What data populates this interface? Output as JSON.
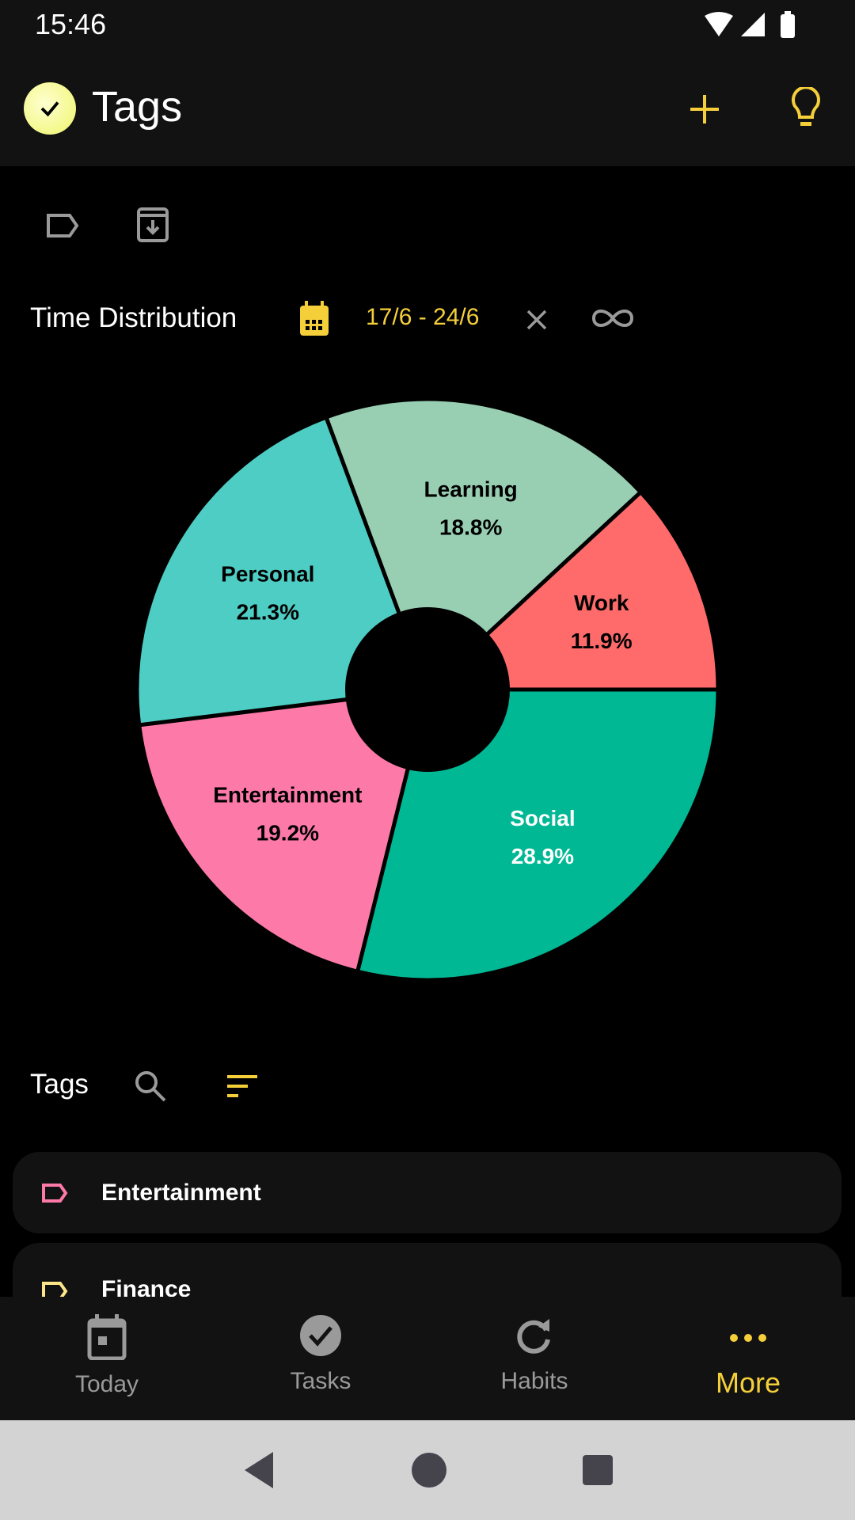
{
  "status_bar": {
    "time": "15:46"
  },
  "app_bar": {
    "title": "Tags",
    "add_icon": "plus-icon",
    "idea_icon": "lightbulb-icon"
  },
  "toolbar": {
    "icons": [
      "tag-outline-icon",
      "archive-icon"
    ]
  },
  "time_distribution": {
    "title": "Time Distribution",
    "date_range": "17/6 - 24/6"
  },
  "chart_data": {
    "type": "pie",
    "donut": true,
    "start": "3 o'clock, clockwise",
    "categories": [
      "Social",
      "Entertainment",
      "Personal",
      "Learning",
      "Work"
    ],
    "values": [
      28.9,
      19.2,
      21.3,
      18.8,
      11.9
    ],
    "labels": [
      "28.9%",
      "19.2%",
      "21.3%",
      "18.8%",
      "11.9%"
    ],
    "colors": [
      "#00b894",
      "#fd79a8",
      "#4ecdc4",
      "#98cfb3",
      "#ff6b6b"
    ],
    "label_colors": [
      "#ffffff",
      "#000000",
      "#000000",
      "#000000",
      "#000000"
    ]
  },
  "tags_section": {
    "title": "Tags"
  },
  "tags": [
    {
      "name": "Entertainment",
      "color": "#fd79a8"
    },
    {
      "name": "Finance",
      "color": "#fde68a"
    }
  ],
  "bottom_nav": [
    {
      "label": "Today"
    },
    {
      "label": "Tasks"
    },
    {
      "label": "Habits"
    },
    {
      "label": "More",
      "active": true
    }
  ],
  "colors": {
    "accent": "#f5cf3a",
    "surface": "#121212",
    "background": "#000000"
  }
}
